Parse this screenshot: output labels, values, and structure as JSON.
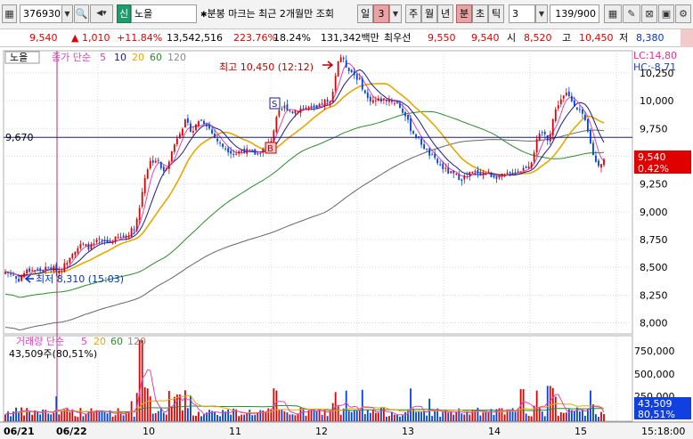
{
  "toolbar": {
    "code": "376930",
    "badge": "신",
    "name": "노을",
    "marker_text": "분봉 마크는 최근 2개월만 조회",
    "period_buttons": [
      "일",
      "3",
      "주",
      "월",
      "년",
      "분",
      "초",
      "틱"
    ],
    "interval_value": "3",
    "count": "139/900"
  },
  "quote": {
    "price": "9,540",
    "change": "1,010",
    "change_pct": "+11.84%",
    "volume": "13,542,516",
    "vol_ratio": "223.76%",
    "turnover": "18.24%",
    "trade_value": "131,342백만",
    "best_ask_label": "최우선",
    "best_ask": "9,550",
    "best_bid": "9,540",
    "open_label": "시",
    "open": "8,520",
    "high_label": "고",
    "high": "10,450",
    "low_label": "저",
    "low": "8,380"
  },
  "price_panel": {
    "title": "노을",
    "legend": {
      "label": "종가 단순",
      "ma": [
        "5",
        "10",
        "20",
        "60",
        "120"
      ]
    },
    "lc": "LC:14,80",
    "hc": "HC:-8,71",
    "high_annot": "최고 10,450 (12:12)",
    "low_annot": "최저 8,310 (15:03)",
    "ref_line_label": "9,670",
    "current_price": "9,540",
    "current_pct": "0.42%",
    "y_ticks": [
      "10,250",
      "10,000",
      "9,750",
      "9,500",
      "9,250",
      "9,000",
      "8,750",
      "8,500",
      "8,250",
      "8,000"
    ],
    "sell_mark": "S",
    "buy_mark": "B"
  },
  "volume_panel": {
    "legend": {
      "label": "거래량 단순",
      "ma": [
        "5",
        "20",
        "60",
        "120"
      ]
    },
    "info": "43,509주(80,51%)",
    "y_ticks": [
      "750,000",
      "500,000",
      "250,000"
    ],
    "current_volume": "43,509",
    "current_pct": "80,51%"
  },
  "x_axis": {
    "labels": [
      "06/21",
      "06/22",
      "10",
      "11",
      "12",
      "13",
      "14",
      "15"
    ],
    "time": "15:18:00"
  },
  "colors": {
    "up": "#e00000",
    "down": "#0044dd",
    "ma5": "#e040c0",
    "ma10": "#1a1a8c",
    "ma20": "#e8a800",
    "ma60": "#2a8a2a",
    "ma120": "#666666",
    "ref_line": "#1a1a8c"
  },
  "chart_data": {
    "type": "candlestick",
    "price_ylim": [
      7900,
      10450
    ],
    "volume_ylim": [
      0,
      800000
    ],
    "high": 10450,
    "low": 8310,
    "reference_line": 9670,
    "last_price": 9540
  }
}
